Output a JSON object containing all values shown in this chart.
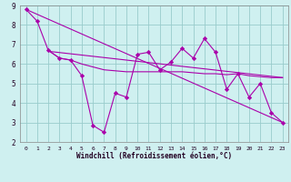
{
  "background_color": "#cff0f0",
  "grid_color": "#99cccc",
  "line_color": "#aa00aa",
  "xlabel": "Windchill (Refroidissement éolien,°C)",
  "xlim": [
    -0.5,
    23.5
  ],
  "ylim": [
    2,
    9
  ],
  "yticks": [
    2,
    3,
    4,
    5,
    6,
    7,
    8,
    9
  ],
  "xticks": [
    0,
    1,
    2,
    3,
    4,
    5,
    6,
    7,
    8,
    9,
    10,
    11,
    12,
    13,
    14,
    15,
    16,
    17,
    18,
    19,
    20,
    21,
    22,
    23
  ],
  "main_x": [
    0,
    1,
    2,
    3,
    4,
    5,
    6,
    7,
    8,
    9,
    10,
    11,
    12,
    13,
    14,
    15,
    16,
    17,
    18,
    19,
    20,
    21,
    22,
    23
  ],
  "main_y": [
    8.8,
    8.2,
    6.7,
    6.3,
    6.2,
    5.4,
    2.85,
    2.5,
    4.5,
    4.3,
    6.5,
    6.6,
    5.7,
    6.1,
    6.8,
    6.3,
    7.3,
    6.6,
    4.7,
    5.5,
    4.3,
    5.0,
    3.5,
    3.0
  ],
  "smooth_x": [
    2,
    3,
    4,
    5,
    6,
    7,
    8,
    9,
    10,
    11,
    12,
    13,
    14,
    15,
    16,
    17,
    18,
    19,
    20,
    21,
    22,
    23
  ],
  "smooth_y": [
    6.7,
    6.3,
    6.2,
    6.0,
    5.85,
    5.7,
    5.65,
    5.6,
    5.6,
    5.6,
    5.6,
    5.6,
    5.6,
    5.55,
    5.5,
    5.5,
    5.45,
    5.5,
    5.4,
    5.35,
    5.3,
    5.3
  ],
  "trend1_x": [
    0,
    23
  ],
  "trend1_y": [
    8.8,
    3.0
  ],
  "trend2_x": [
    2,
    23
  ],
  "trend2_y": [
    6.65,
    5.3
  ]
}
